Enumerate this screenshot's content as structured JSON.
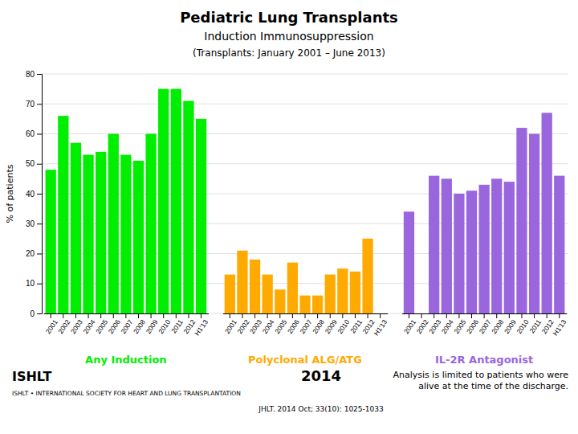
{
  "chart_data": {
    "type": "bar",
    "title": "Pediatric Lung Transplants",
    "subtitle": "Induction Immunosuppression",
    "annotations": [
      "(Transplants: January 2001 – June 2013)",
      "ISHLT",
      "ISHLT • INTERNATIONAL SOCIETY FOR HEART AND LUNG TRANSPLANTATION",
      "2014",
      "JHLT. 2014 Oct; 33(10): 1025-1033",
      "Analysis is limited to patients who were\nalive at the time of the discharge."
    ],
    "y_label": "% of patients",
    "categories": [
      "2001",
      "2002",
      "2003",
      "2004",
      "2005",
      "2006",
      "2007",
      "2008",
      "2009",
      "2010",
      "2011",
      "2012",
      "H1'13"
    ],
    "series": [
      {
        "name": "Any Induction",
        "color": "#00ee00",
        "values": [
          48,
          66,
          57,
          53,
          54,
          60,
          53,
          51,
          60,
          75,
          75,
          71,
          65
        ]
      },
      {
        "name": "Polyclonal ALG/ATG",
        "color": "#ffaa00",
        "values": [
          13,
          21,
          18,
          13,
          8,
          17,
          6,
          6,
          13,
          15,
          14,
          25,
          0
        ]
      },
      {
        "name": "IL-2R Antagonist",
        "color": "#9966dd",
        "values": [
          34,
          0,
          46,
          45,
          40,
          41,
          43,
          45,
          44,
          62,
          60,
          67,
          46
        ]
      }
    ],
    "ylim": [
      0,
      80
    ],
    "yticks": [
      0,
      10,
      20,
      30,
      40,
      50,
      60,
      70,
      80
    ],
    "grid": true
  }
}
